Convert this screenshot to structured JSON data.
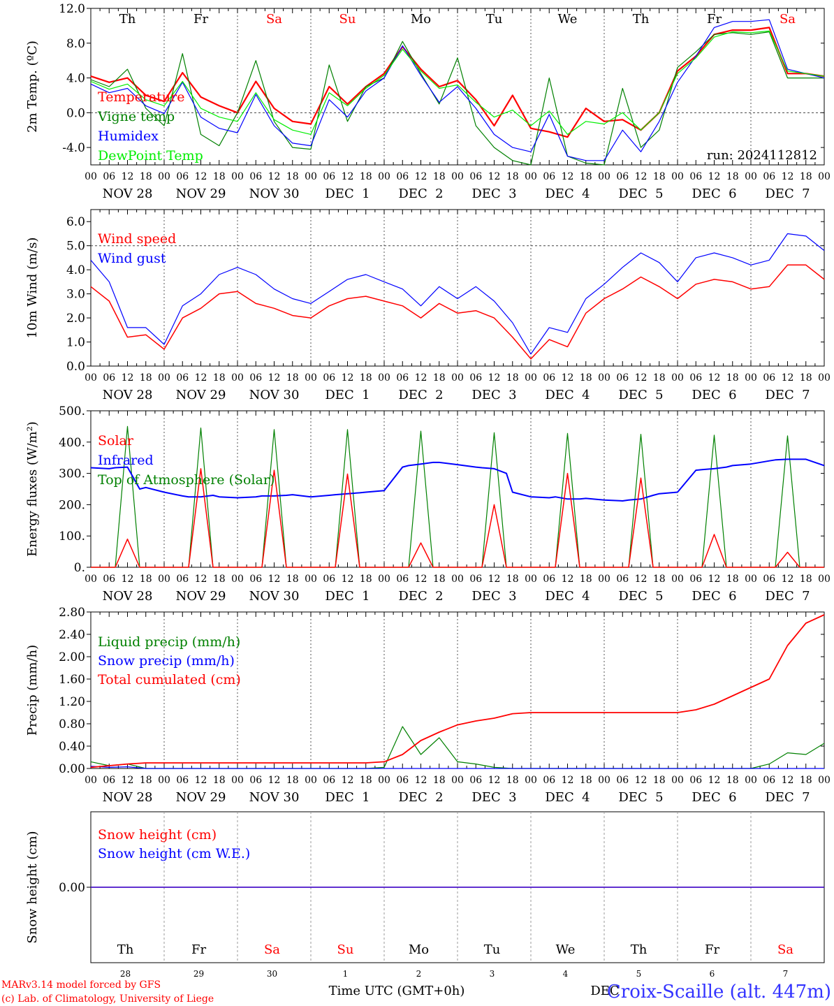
{
  "days": {
    "weekday": [
      "Th",
      "Fr",
      "Sa",
      "Su",
      "Mo",
      "Tu",
      "We",
      "Th",
      "Fr",
      "Sa"
    ],
    "weekend": [
      false,
      false,
      true,
      true,
      false,
      false,
      false,
      false,
      false,
      true
    ],
    "dates": [
      "NOV 28",
      "NOV 29",
      "NOV 30",
      "DEC  1",
      "DEC  2",
      "DEC  3",
      "DEC  4",
      "DEC  5",
      "DEC  6",
      "DEC  7"
    ],
    "hour_ticks": [
      "00",
      "06",
      "12",
      "18"
    ],
    "end_tick": "00",
    "day_numbers": [
      "28",
      "29",
      "30",
      "1",
      "2",
      "3",
      "4",
      "5",
      "6",
      "7"
    ]
  },
  "colors": {
    "red": "#ff0000",
    "darkgreen": "#008000",
    "blue": "#0000ff",
    "lightgreen": "#00ee00",
    "axis": "#000000"
  },
  "chart_data": [
    {
      "id": "temp",
      "type": "line",
      "ylabel": "2m Temp. (ºC)",
      "ylim": [
        -6,
        12
      ],
      "yticks": [
        "12.0",
        "8.0",
        "4.0",
        "0.0",
        "-4.0"
      ],
      "ytick_values": [
        12,
        8,
        4,
        0,
        -4
      ],
      "dashed_ref": 0,
      "annotation": "run: 2024112812",
      "show_weekdays": true,
      "legend": [
        "Temperature",
        "Vigne temp",
        "Humidex",
        "DewPoint Temp"
      ],
      "x_hours": [
        0,
        6,
        12,
        18,
        24,
        30,
        36,
        42,
        48,
        54,
        60,
        66,
        72,
        78,
        84,
        90,
        96,
        102,
        108,
        114,
        120,
        126,
        132,
        138,
        144,
        150,
        156,
        162,
        168,
        174,
        180,
        186,
        192,
        198,
        204,
        210,
        216,
        222,
        228,
        234,
        240
      ],
      "series": [
        {
          "name": "Temperature",
          "color": "#ff0000",
          "width": 2.2,
          "values": [
            4.2,
            3.5,
            4.0,
            2.0,
            1.3,
            4.6,
            1.8,
            0.8,
            0.0,
            3.6,
            0.5,
            -1.0,
            -1.3,
            3.0,
            1.0,
            3.0,
            4.5,
            7.6,
            5.0,
            3.0,
            3.7,
            1.5,
            -1.5,
            2.0,
            -1.8,
            -2.2,
            -2.8,
            0.5,
            -1.0,
            -0.8,
            -2.0,
            0.0,
            4.8,
            6.5,
            9.0,
            9.5,
            9.5,
            9.8,
            4.5,
            4.5,
            4.2
          ]
        },
        {
          "name": "Vigne temp",
          "color": "#008000",
          "width": 1.2,
          "values": [
            3.8,
            3.0,
            5.0,
            0.5,
            -1.5,
            6.8,
            -2.5,
            -3.8,
            0.0,
            6.0,
            -1.0,
            -4.0,
            -4.2,
            5.5,
            -1.0,
            3.0,
            4.0,
            8.2,
            4.5,
            1.0,
            6.3,
            -1.5,
            -4.0,
            -5.5,
            -6.0,
            4.0,
            -5.0,
            -5.8,
            -6.0,
            2.8,
            -4.0,
            -2.0,
            5.2,
            7.0,
            9.0,
            9.2,
            9.0,
            9.3,
            4.0,
            4.0,
            4.0
          ]
        },
        {
          "name": "Humidex",
          "color": "#0000ff",
          "width": 1.2,
          "values": [
            3.3,
            2.3,
            2.8,
            0.8,
            -0.1,
            3.5,
            -0.5,
            -1.8,
            -2.3,
            2.1,
            -1.5,
            -3.5,
            -3.8,
            1.5,
            -0.5,
            2.5,
            4.0,
            7.7,
            4.3,
            1.2,
            3.0,
            0.5,
            -2.5,
            -4.0,
            -4.5,
            -0.2,
            -5.0,
            -5.5,
            -5.5,
            -2.0,
            -4.5,
            -1.0,
            3.5,
            6.5,
            9.8,
            10.5,
            10.5,
            10.7,
            5.0,
            4.5,
            4.0
          ]
        },
        {
          "name": "DewPoint Temp",
          "color": "#00ee00",
          "width": 1.2,
          "values": [
            3.6,
            2.7,
            3.3,
            1.5,
            0.8,
            3.6,
            0.5,
            -0.5,
            -1.0,
            2.3,
            -0.8,
            -2.0,
            -2.5,
            2.3,
            0.8,
            2.8,
            4.3,
            7.3,
            4.8,
            2.8,
            3.2,
            1.2,
            -0.5,
            0.3,
            -1.5,
            0.2,
            -2.5,
            -1.0,
            -1.3,
            0.0,
            -2.0,
            0.0,
            4.5,
            6.3,
            8.7,
            9.3,
            9.2,
            9.4,
            4.8,
            4.5,
            4.2
          ]
        }
      ]
    },
    {
      "id": "wind",
      "type": "line",
      "ylabel": "10m Wind (m/s)",
      "ylim": [
        0,
        6.5
      ],
      "yticks": [
        "6.0",
        "5.0",
        "4.0",
        "3.0",
        "2.0",
        "1.0",
        "0.0"
      ],
      "ytick_values": [
        6,
        5,
        4,
        3,
        2,
        1,
        0
      ],
      "dashed_ref": 5.0,
      "show_weekdays": false,
      "legend": [
        "Wind speed",
        "Wind gust"
      ],
      "x_hours": [
        0,
        6,
        12,
        18,
        24,
        30,
        36,
        42,
        48,
        54,
        60,
        66,
        72,
        78,
        84,
        90,
        96,
        102,
        108,
        114,
        120,
        126,
        132,
        138,
        144,
        150,
        156,
        162,
        168,
        174,
        180,
        186,
        192,
        198,
        204,
        210,
        216,
        222,
        228,
        234,
        240
      ],
      "series": [
        {
          "name": "Wind speed",
          "color": "#ff0000",
          "width": 1.5,
          "values": [
            3.3,
            2.7,
            1.2,
            1.3,
            0.7,
            2.0,
            2.4,
            3.0,
            3.1,
            2.6,
            2.4,
            2.1,
            2.0,
            2.5,
            2.8,
            2.9,
            2.7,
            2.5,
            2.0,
            2.6,
            2.2,
            2.3,
            2.0,
            1.2,
            0.3,
            1.1,
            0.8,
            2.2,
            2.8,
            3.2,
            3.7,
            3.3,
            2.8,
            3.4,
            3.6,
            3.5,
            3.2,
            3.3,
            4.2,
            4.2,
            3.6
          ]
        },
        {
          "name": "Wind gust",
          "color": "#0000ff",
          "width": 1.2,
          "values": [
            4.4,
            3.5,
            1.6,
            1.6,
            0.9,
            2.5,
            3.0,
            3.8,
            4.1,
            3.8,
            3.2,
            2.8,
            2.6,
            3.1,
            3.6,
            3.8,
            3.5,
            3.2,
            2.5,
            3.3,
            2.8,
            3.3,
            2.7,
            1.8,
            0.5,
            1.6,
            1.4,
            2.8,
            3.4,
            4.1,
            4.7,
            4.3,
            3.5,
            4.5,
            4.7,
            4.5,
            4.2,
            4.4,
            5.5,
            5.4,
            4.8
          ]
        }
      ]
    },
    {
      "id": "energy",
      "type": "line",
      "ylabel": "Energy fluxes (W/m²)",
      "ylim": [
        0,
        500
      ],
      "yticks": [
        "500.",
        "400.",
        "300.",
        "200.",
        "100.",
        "0."
      ],
      "ytick_values": [
        500,
        400,
        300,
        200,
        100,
        0
      ],
      "show_weekdays": false,
      "legend": [
        "Solar",
        "Infrared",
        "Top of Atmosphere (Solar)"
      ],
      "x_hours": [
        0,
        6,
        8,
        12,
        16,
        18,
        24,
        30,
        32,
        36,
        40,
        42,
        48,
        54,
        56,
        60,
        64,
        66,
        72,
        78,
        80,
        84,
        88,
        90,
        96,
        102,
        104,
        108,
        112,
        114,
        120,
        126,
        128,
        132,
        136,
        138,
        144,
        150,
        152,
        156,
        160,
        162,
        168,
        174,
        176,
        180,
        184,
        186,
        192,
        198,
        200,
        204,
        208,
        210,
        216,
        222,
        224,
        228,
        232,
        234,
        240
      ],
      "series": [
        {
          "name": "Top of Atmosphere (Solar)",
          "color": "#008000",
          "width": 1.2,
          "values": [
            0,
            0,
            0,
            450,
            0,
            0,
            0,
            0,
            0,
            445,
            0,
            0,
            0,
            0,
            0,
            440,
            0,
            0,
            0,
            0,
            0,
            440,
            0,
            0,
            0,
            0,
            0,
            435,
            0,
            0,
            0,
            0,
            0,
            430,
            0,
            0,
            0,
            0,
            0,
            428,
            0,
            0,
            0,
            0,
            0,
            425,
            0,
            0,
            0,
            0,
            0,
            422,
            0,
            0,
            0,
            0,
            0,
            420,
            0,
            0,
            0
          ]
        },
        {
          "name": "Infrared",
          "color": "#0000ff",
          "width": 2.0,
          "values": [
            318,
            315,
            318,
            320,
            250,
            255,
            240,
            228,
            225,
            225,
            230,
            225,
            222,
            225,
            228,
            228,
            230,
            232,
            225,
            230,
            232,
            235,
            238,
            240,
            245,
            320,
            325,
            330,
            335,
            335,
            328,
            320,
            318,
            315,
            300,
            240,
            225,
            222,
            225,
            218,
            218,
            220,
            215,
            212,
            215,
            218,
            230,
            235,
            240,
            310,
            312,
            315,
            320,
            325,
            330,
            340,
            343,
            345,
            345,
            345,
            325
          ]
        },
        {
          "name": "Solar",
          "color": "#ff0000",
          "width": 1.5,
          "values": [
            0,
            0,
            0,
            90,
            0,
            0,
            0,
            0,
            0,
            315,
            0,
            0,
            0,
            0,
            0,
            310,
            0,
            0,
            0,
            0,
            0,
            298,
            0,
            0,
            0,
            0,
            0,
            78,
            0,
            0,
            0,
            0,
            0,
            200,
            0,
            0,
            0,
            0,
            0,
            300,
            0,
            0,
            0,
            0,
            0,
            285,
            0,
            0,
            0,
            0,
            0,
            105,
            0,
            0,
            0,
            0,
            0,
            48,
            0,
            0,
            0
          ]
        }
      ]
    },
    {
      "id": "precip",
      "type": "line",
      "ylabel": "Precip (mm/h)",
      "ylim": [
        0,
        2.8
      ],
      "yticks": [
        "2.80",
        "2.40",
        "2.00",
        "1.60",
        "1.20",
        "0.80",
        "0.40",
        "0.00"
      ],
      "ytick_values": [
        2.8,
        2.4,
        2.0,
        1.6,
        1.2,
        0.8,
        0.4,
        0.0
      ],
      "show_weekdays": false,
      "legend": [
        "Liquid precip (mm/h)",
        "Snow precip (mm/h)",
        "Total cumulated (cm)"
      ],
      "x_hours": [
        0,
        6,
        12,
        18,
        24,
        30,
        36,
        42,
        48,
        54,
        60,
        66,
        72,
        78,
        84,
        90,
        96,
        102,
        108,
        114,
        120,
        126,
        132,
        138,
        144,
        150,
        156,
        162,
        168,
        174,
        180,
        186,
        192,
        198,
        204,
        210,
        216,
        222,
        228,
        234,
        240
      ],
      "series": [
        {
          "name": "Liquid precip (mm/h)",
          "color": "#008000",
          "width": 1.2,
          "values": [
            0.12,
            0.05,
            0.08,
            0,
            0,
            0,
            0,
            0,
            0,
            0,
            0,
            0,
            0,
            0,
            0,
            0,
            0.02,
            0.75,
            0.25,
            0.55,
            0.12,
            0.08,
            0.02,
            0,
            0,
            0,
            0,
            0,
            0,
            0,
            0,
            0,
            0,
            0,
            0,
            0,
            0,
            0.08,
            0.28,
            0.25,
            0.45
          ]
        },
        {
          "name": "Snow precip (mm/h)",
          "color": "#0000ff",
          "width": 1.2,
          "values": [
            0.04,
            0.02,
            0.03,
            0,
            0,
            0,
            0,
            0,
            0,
            0,
            0,
            0,
            0,
            0,
            0,
            0,
            0,
            0,
            0,
            0,
            0,
            0,
            0,
            0,
            0,
            0,
            0,
            0,
            0,
            0,
            0,
            0,
            0,
            0,
            0,
            0,
            0,
            0,
            0,
            0,
            0
          ]
        },
        {
          "name": "Total cumulated (cm)",
          "color": "#ff0000",
          "width": 1.8,
          "values": [
            0.02,
            0.05,
            0.08,
            0.1,
            0.1,
            0.1,
            0.1,
            0.1,
            0.1,
            0.1,
            0.1,
            0.1,
            0.1,
            0.1,
            0.1,
            0.1,
            0.12,
            0.25,
            0.5,
            0.65,
            0.78,
            0.85,
            0.9,
            0.98,
            1.0,
            1.0,
            1.0,
            1.0,
            1.0,
            1.0,
            1.0,
            1.0,
            1.0,
            1.05,
            1.15,
            1.3,
            1.45,
            1.6,
            2.2,
            2.6,
            2.75
          ]
        }
      ]
    },
    {
      "id": "snow",
      "type": "line",
      "ylabel": "Snow height (cm)",
      "ylim": [
        -1,
        1
      ],
      "yticks": [
        "0.00"
      ],
      "ytick_values": [
        0
      ],
      "show_weekdays": false,
      "bottom_weekdays": true,
      "legend": [
        "Snow height (cm)",
        "Snow height (cm W.E.)"
      ],
      "x_hours": [
        0,
        240
      ],
      "series": [
        {
          "name": "Snow height (cm)",
          "color": "#ff0000",
          "width": 1.5,
          "values": [
            0,
            0
          ]
        },
        {
          "name": "Snow height (cm W.E.)",
          "color": "#0000ff",
          "width": 1.2,
          "values": [
            0,
            0
          ]
        }
      ]
    }
  ],
  "footer": {
    "model_line": "MARv3.14 model forced by GFS",
    "lab_line": "(c) Lab. of Climatology, University of Liege",
    "time_label": "Time UTC (GMT+0h)",
    "month_label": "DEC",
    "location": "Croix-Scaille (alt. 447m)"
  }
}
